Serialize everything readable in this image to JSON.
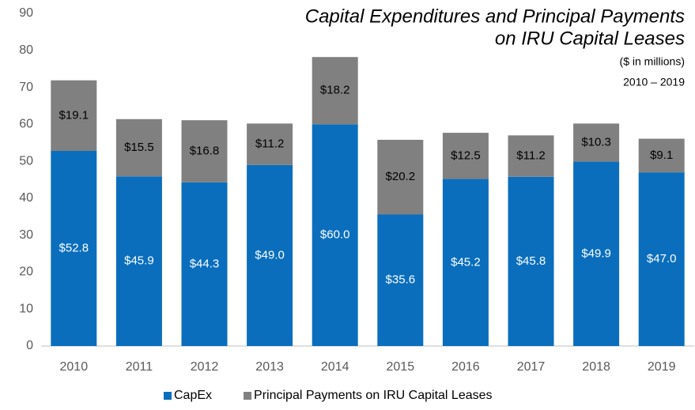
{
  "chart_data": {
    "type": "stacked_bar",
    "title": [
      "Capital Expenditures and Principal Payments",
      "on IRU Capital Leases"
    ],
    "subtitle": [
      "($ in millions)",
      "2010 – 2019"
    ],
    "categories": [
      "2010",
      "2011",
      "2012",
      "2013",
      "2014",
      "2015",
      "2016",
      "2017",
      "2018",
      "2019"
    ],
    "series": [
      {
        "name": "CapEx",
        "color": "#0a6ebd",
        "values": [
          52.8,
          45.9,
          44.3,
          49.0,
          60.0,
          35.6,
          45.2,
          45.8,
          49.9,
          47.0
        ],
        "value_labels": [
          "$52.8",
          "$45.9",
          "$44.3",
          "$49.0",
          "$60.0",
          "$35.6",
          "$45.2",
          "$45.8",
          "$49.9",
          "$47.0"
        ]
      },
      {
        "name": "Principal Payments on IRU Capital Leases",
        "color": "#808080",
        "values": [
          19.1,
          15.5,
          16.8,
          11.2,
          18.2,
          20.2,
          12.5,
          11.2,
          10.3,
          9.1
        ],
        "value_labels": [
          "$19.1",
          "$15.5",
          "$16.8",
          "$11.2",
          "$18.2",
          "$20.2",
          "$12.5",
          "$11.2",
          "$10.3",
          "$9.1"
        ]
      }
    ],
    "ylim": [
      0,
      90
    ],
    "yticks": [
      0,
      10,
      20,
      30,
      40,
      50,
      60,
      70,
      80,
      90
    ],
    "legend": "bottom"
  }
}
